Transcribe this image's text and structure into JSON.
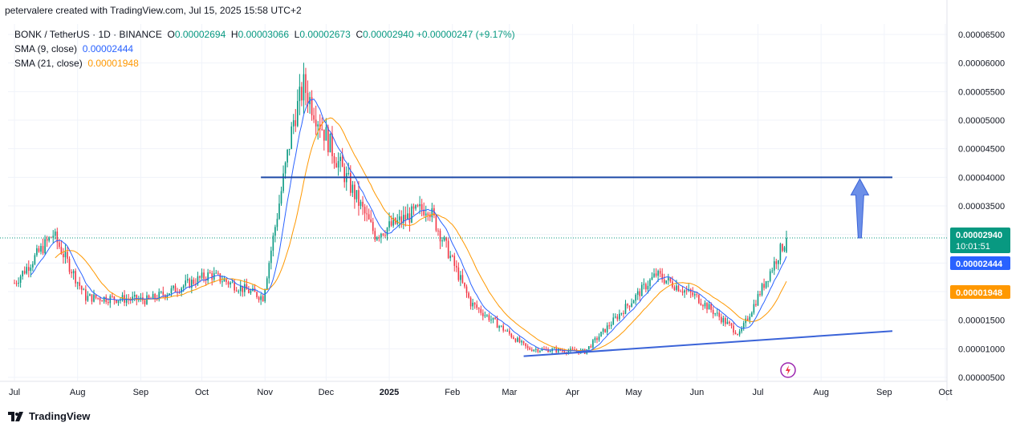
{
  "header": {
    "text": "petervalere created with TradingView.com, Jul 15, 2025 15:58 UTC+2"
  },
  "legend": {
    "symbol": "BONK / TetherUS · 1D · BINANCE",
    "o_label": "O",
    "o_value": "0.00002694",
    "h_label": "H",
    "h_value": "0.00003066",
    "l_label": "L",
    "l_value": "0.00002673",
    "c_label": "C",
    "c_value": "0.00002940",
    "change": "+0.00000247 (+9.17%)",
    "sma9_label": "SMA (9, close)",
    "sma9_value": "0.00002444",
    "sma21_label": "SMA (21, close)",
    "sma21_value": "0.00001948"
  },
  "footer": {
    "brand": "TradingView"
  },
  "chart_data": {
    "type": "candlestick",
    "x_labels": [
      "Jul",
      "Aug",
      "Sep",
      "Oct",
      "Nov",
      "Dec",
      "2025",
      "Feb",
      "Mar",
      "Apr",
      "May",
      "Jun",
      "Jul",
      "Aug",
      "Sep",
      "Oct"
    ],
    "y_ticks": [
      "0.00006500",
      "0.00006000",
      "0.00005500",
      "0.00005000",
      "0.00004500",
      "0.00004000",
      "0.00003500",
      "0.00003000",
      "0.00002500",
      "0.00002000",
      "0.00001500",
      "0.00001000",
      "0.00000500"
    ],
    "y_tick_values": [
      6.5e-05,
      6e-05,
      5.5e-05,
      5e-05,
      4.5e-05,
      4e-05,
      3.5e-05,
      3e-05,
      2.5e-05,
      2e-05,
      1.5e-05,
      1e-05,
      5e-06
    ],
    "price_badge": {
      "value": "0.00002940",
      "countdown": "10:01:51",
      "color": "#089981"
    },
    "sma9_badge": {
      "value": "0.00002444",
      "color": "#2962ff"
    },
    "sma21_badge": {
      "value": "0.00001948",
      "color": "#ff9800"
    },
    "resistance_level": 4e-05,
    "approx_close_path": [
      {
        "date": "2024-07-01",
        "close": 2.15e-05
      },
      {
        "date": "2024-07-20",
        "close": 3e-05
      },
      {
        "date": "2024-08-05",
        "close": 1.9e-05
      },
      {
        "date": "2024-09-05",
        "close": 1.85e-05
      },
      {
        "date": "2024-10-05",
        "close": 2.3e-05
      },
      {
        "date": "2024-10-31",
        "close": 1.9e-05
      },
      {
        "date": "2024-11-15",
        "close": 5e-05
      },
      {
        "date": "2024-11-20",
        "close": 5.6e-05
      },
      {
        "date": "2024-12-05",
        "close": 4.4e-05
      },
      {
        "date": "2024-12-25",
        "close": 3e-05
      },
      {
        "date": "2025-01-20",
        "close": 3.5e-05
      },
      {
        "date": "2025-02-10",
        "close": 1.8e-05
      },
      {
        "date": "2025-03-10",
        "close": 1e-05
      },
      {
        "date": "2025-04-07",
        "close": 9.5e-06
      },
      {
        "date": "2025-05-12",
        "close": 2.3e-05
      },
      {
        "date": "2025-06-01",
        "close": 1.9e-05
      },
      {
        "date": "2025-06-22",
        "close": 1.25e-05
      },
      {
        "date": "2025-07-15",
        "close": 2.94e-05
      }
    ],
    "colors": {
      "up": "#089981",
      "down": "#f23645",
      "sma9": "#2962ff",
      "sma21": "#ff9800",
      "level": "#1e4aa8",
      "trend": "#3a63d8",
      "arrow": "#6c8fe8"
    }
  }
}
